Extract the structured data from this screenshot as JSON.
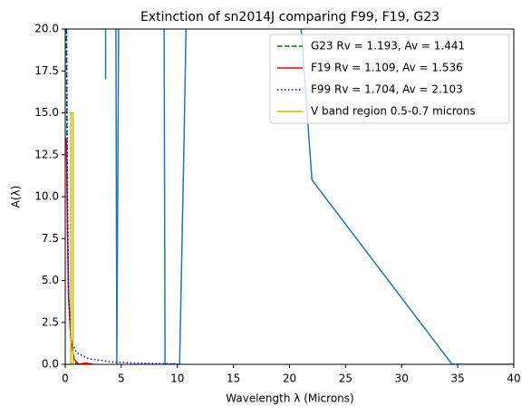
{
  "chart_data": {
    "type": "line",
    "title": "Extinction of sn2014J comparing F99, F19, G23",
    "xlabel": "Wavelength λ (Microns)",
    "ylabel": "A(λ)",
    "xlim": [
      0,
      40
    ],
    "xticks": [
      0,
      5,
      10,
      15,
      20,
      25,
      30,
      35,
      40
    ],
    "ylim": [
      0,
      20
    ],
    "yticks": [
      {
        "value": 0,
        "label": "0.0"
      },
      2.5,
      {
        "value": 5,
        "label": "5.0"
      },
      7.5,
      {
        "value": 10,
        "label": "10.0"
      },
      12.5,
      {
        "value": 15,
        "label": "15.0"
      },
      17.5,
      {
        "value": 20,
        "label": "20.0"
      }
    ],
    "legend": "upper right",
    "series": [
      {
        "color": "#1f77b4",
        "dash": "solid",
        "x": [
          3.6,
          3.6,
          4.5,
          4.6,
          4.8,
          8.8,
          8.9,
          10.2,
          10.6,
          10.9,
          20.5,
          22,
          34.5,
          40
        ],
        "values": [
          17,
          25,
          25,
          0,
          25,
          25,
          0,
          0,
          13.5,
          25,
          25,
          11,
          0,
          0
        ]
      },
      {
        "name": "G23 Rv = 1.193, Av = 1.441",
        "color": "#008000",
        "dash": "dashed",
        "x": [
          0.1,
          0.2,
          0.3,
          0.5,
          0.8,
          1
        ],
        "values": [
          20,
          8,
          4,
          1.5,
          0.3,
          0
        ]
      },
      {
        "name": "F19 Rv = 1.109, Av = 1.536",
        "color": "#ff0000",
        "dash": "solid",
        "x": [
          0.1,
          0.2,
          0.3,
          0.5,
          0.8,
          1.2,
          1.8,
          2.5
        ],
        "values": [
          13.5,
          8,
          4,
          1.5,
          0.3,
          0,
          0.08,
          0
        ]
      },
      {
        "name": "F99 Rv = 1.704, Av = 2.103",
        "color": "#0000ff",
        "dash": "dotted",
        "x": [
          0.1,
          0.2,
          0.3,
          0.5,
          1,
          2,
          4,
          6,
          8,
          10
        ],
        "values": [
          25,
          10,
          4,
          1.5,
          0.7,
          0.35,
          0.15,
          0.08,
          0.05,
          0.03
        ]
      },
      {
        "name": "V band region 0.5-0.7 microns",
        "color": "#bfbf00",
        "dash": "solid",
        "x": [
          0.5,
          0.5,
          0.7,
          0.7
        ],
        "values": [
          0,
          15,
          15,
          0
        ]
      }
    ]
  }
}
